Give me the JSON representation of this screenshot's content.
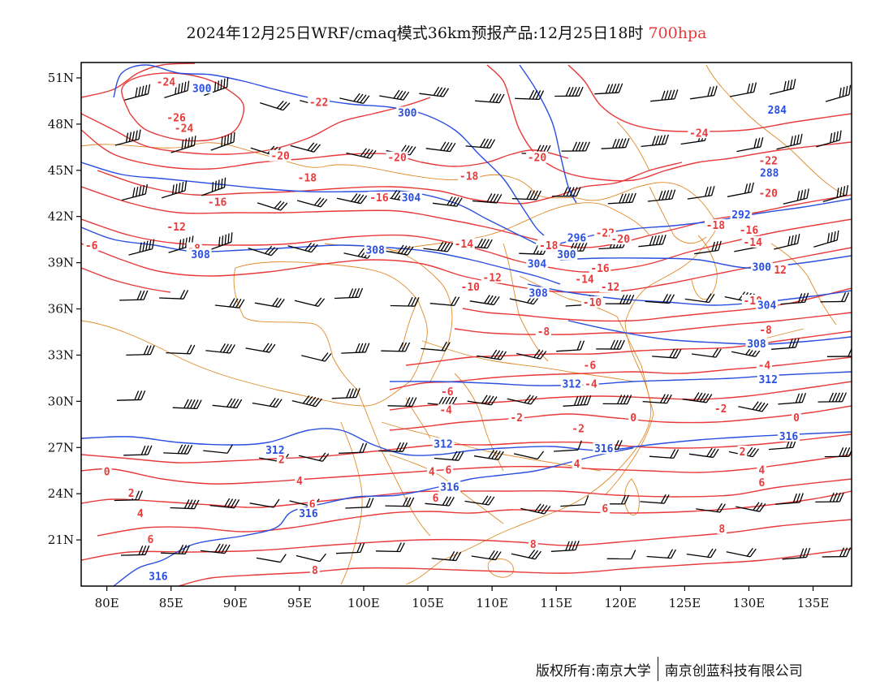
{
  "title": {
    "main": "2024年12月25日WRF/cmaq模式36km预报产品:12月25日18时",
    "level": "700hpa",
    "level_color": "#e83a3a"
  },
  "axes": {
    "lon_labels": [
      "80E",
      "85E",
      "90E",
      "95E",
      "100E",
      "105E",
      "110E",
      "115E",
      "120E",
      "125E",
      "130E",
      "135E"
    ],
    "lat_labels": [
      "51N",
      "48N",
      "45N",
      "42N",
      "39N",
      "36N",
      "33N",
      "30N",
      "27N",
      "24N",
      "21N"
    ],
    "lon_range": [
      78,
      138
    ],
    "lat_range": [
      18,
      52
    ]
  },
  "colors": {
    "temperature": "#e83a3a",
    "geopotential": "#2a4fe0",
    "boundary": "#e08a2a",
    "wind": "#000000"
  },
  "temperature_labels": [
    {
      "text": "-24",
      "lon": 84.6,
      "lat": 50.7
    },
    {
      "text": "-26",
      "lon": 85.4,
      "lat": 48.4
    },
    {
      "text": "-24",
      "lon": 86.0,
      "lat": 47.7
    },
    {
      "text": "-22",
      "lon": 96.5,
      "lat": 49.4
    },
    {
      "text": "-20",
      "lon": 93.5,
      "lat": 45.9
    },
    {
      "text": "-20",
      "lon": 102.6,
      "lat": 45.8
    },
    {
      "text": "-18",
      "lon": 95.6,
      "lat": 44.5
    },
    {
      "text": "-18",
      "lon": 108.2,
      "lat": 44.6
    },
    {
      "text": "-16",
      "lon": 88.6,
      "lat": 42.9
    },
    {
      "text": "-16",
      "lon": 101.2,
      "lat": 43.2
    },
    {
      "text": "-20",
      "lon": 113.5,
      "lat": 45.8
    },
    {
      "text": "-24",
      "lon": 126.1,
      "lat": 47.4
    },
    {
      "text": "-22",
      "lon": 131.5,
      "lat": 45.6
    },
    {
      "text": "-20",
      "lon": 131.5,
      "lat": 43.5
    },
    {
      "text": "-12",
      "lon": 85.4,
      "lat": 41.3
    },
    {
      "text": "-8",
      "lon": 86.8,
      "lat": 39.9
    },
    {
      "text": "-6",
      "lon": 78.8,
      "lat": 40.1
    },
    {
      "text": "-14",
      "lon": 107.8,
      "lat": 40.2
    },
    {
      "text": "-18",
      "lon": 114.4,
      "lat": 40.1
    },
    {
      "text": "-22",
      "lon": 118.8,
      "lat": 40.9
    },
    {
      "text": "-20",
      "lon": 120.0,
      "lat": 40.5
    },
    {
      "text": "-18",
      "lon": 127.4,
      "lat": 41.4
    },
    {
      "text": "-16",
      "lon": 130.0,
      "lat": 41.1
    },
    {
      "text": "-14",
      "lon": 130.3,
      "lat": 40.3
    },
    {
      "text": "-12",
      "lon": 110.0,
      "lat": 38.0
    },
    {
      "text": "-16",
      "lon": 118.4,
      "lat": 38.6
    },
    {
      "text": "-14",
      "lon": 117.2,
      "lat": 37.9
    },
    {
      "text": "-12",
      "lon": 119.2,
      "lat": 37.4
    },
    {
      "text": "-10",
      "lon": 108.3,
      "lat": 37.4
    },
    {
      "text": "-10",
      "lon": 117.8,
      "lat": 36.4
    },
    {
      "text": "-10",
      "lon": 130.3,
      "lat": 36.5
    },
    {
      "text": "-12",
      "lon": 132.2,
      "lat": 38.5
    },
    {
      "text": "-8",
      "lon": 114.0,
      "lat": 34.5
    },
    {
      "text": "-8",
      "lon": 131.3,
      "lat": 34.6
    },
    {
      "text": "-6",
      "lon": 130.9,
      "lat": 33.6
    },
    {
      "text": "-6",
      "lon": 117.6,
      "lat": 32.3
    },
    {
      "text": "-4",
      "lon": 117.7,
      "lat": 31.1
    },
    {
      "text": "-4",
      "lon": 131.2,
      "lat": 32.3
    },
    {
      "text": "-6",
      "lon": 106.5,
      "lat": 30.6
    },
    {
      "text": "-4",
      "lon": 106.4,
      "lat": 29.4
    },
    {
      "text": "-2",
      "lon": 111.9,
      "lat": 28.9
    },
    {
      "text": "-2",
      "lon": 127.8,
      "lat": 29.5
    },
    {
      "text": "-2",
      "lon": 116.7,
      "lat": 28.2
    },
    {
      "text": "0",
      "lon": 121.0,
      "lat": 28.9
    },
    {
      "text": "0",
      "lon": 133.7,
      "lat": 28.9
    },
    {
      "text": "2",
      "lon": 93.6,
      "lat": 26.2
    },
    {
      "text": "2",
      "lon": 129.5,
      "lat": 26.7
    },
    {
      "text": "0",
      "lon": 80.0,
      "lat": 25.4
    },
    {
      "text": "2",
      "lon": 81.9,
      "lat": 24.0
    },
    {
      "text": "4",
      "lon": 82.6,
      "lat": 22.7
    },
    {
      "text": "6",
      "lon": 83.4,
      "lat": 21.0
    },
    {
      "text": "4",
      "lon": 95.0,
      "lat": 24.8
    },
    {
      "text": "6",
      "lon": 96.0,
      "lat": 23.3
    },
    {
      "text": "4",
      "lon": 105.3,
      "lat": 25.4
    },
    {
      "text": "6",
      "lon": 106.6,
      "lat": 25.5
    },
    {
      "text": "6",
      "lon": 105.6,
      "lat": 23.7
    },
    {
      "text": "4",
      "lon": 116.6,
      "lat": 25.9
    },
    {
      "text": "6",
      "lon": 118.8,
      "lat": 23.0
    },
    {
      "text": "4",
      "lon": 131.0,
      "lat": 25.5
    },
    {
      "text": "6",
      "lon": 131.0,
      "lat": 24.7
    },
    {
      "text": "8",
      "lon": 113.2,
      "lat": 20.7
    },
    {
      "text": "8",
      "lon": 127.9,
      "lat": 21.7
    },
    {
      "text": "8",
      "lon": 96.2,
      "lat": 19.0
    }
  ],
  "geopotential_labels": [
    {
      "text": "300",
      "lon": 87.4,
      "lat": 50.3
    },
    {
      "text": "300",
      "lon": 103.4,
      "lat": 48.7
    },
    {
      "text": "284",
      "lon": 132.2,
      "lat": 48.9
    },
    {
      "text": "288",
      "lon": 131.6,
      "lat": 44.8
    },
    {
      "text": "304",
      "lon": 103.7,
      "lat": 43.2
    },
    {
      "text": "292",
      "lon": 129.4,
      "lat": 42.1
    },
    {
      "text": "308",
      "lon": 87.3,
      "lat": 39.5
    },
    {
      "text": "308",
      "lon": 100.9,
      "lat": 39.8
    },
    {
      "text": "296",
      "lon": 116.6,
      "lat": 40.6
    },
    {
      "text": "300",
      "lon": 115.8,
      "lat": 39.5
    },
    {
      "text": "304",
      "lon": 113.5,
      "lat": 38.9
    },
    {
      "text": "308",
      "lon": 113.6,
      "lat": 37.0
    },
    {
      "text": "300",
      "lon": 131.0,
      "lat": 38.7
    },
    {
      "text": "304",
      "lon": 131.4,
      "lat": 36.2
    },
    {
      "text": "308",
      "lon": 130.6,
      "lat": 33.7
    },
    {
      "text": "312",
      "lon": 116.2,
      "lat": 31.1
    },
    {
      "text": "312",
      "lon": 131.5,
      "lat": 31.4
    },
    {
      "text": "312",
      "lon": 93.1,
      "lat": 26.8
    },
    {
      "text": "312",
      "lon": 106.2,
      "lat": 27.2
    },
    {
      "text": "316",
      "lon": 118.7,
      "lat": 26.9
    },
    {
      "text": "316",
      "lon": 133.1,
      "lat": 27.7
    },
    {
      "text": "316",
      "lon": 106.7,
      "lat": 24.4
    },
    {
      "text": "316",
      "lon": 95.7,
      "lat": 22.7
    },
    {
      "text": "316",
      "lon": 84.0,
      "lat": 18.6
    }
  ],
  "footer": {
    "left": "版权所有:南京大学",
    "right": "南京创蓝科技有限公司"
  }
}
